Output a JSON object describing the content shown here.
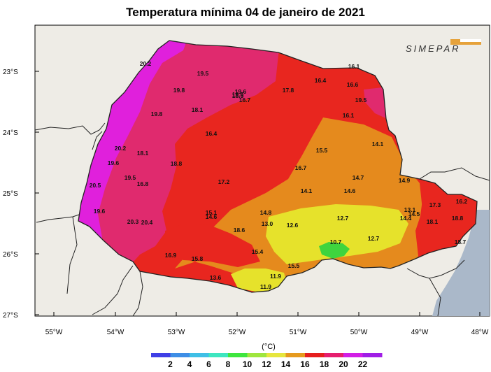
{
  "title": "Temperatura mínima 04 de janeiro de 2021",
  "logo_text": "SIMEPAR",
  "unit": "(°C)",
  "lat_labels": [
    "23°S",
    "24°S",
    "25°S",
    "26°S",
    "27°S"
  ],
  "lon_labels": [
    "55°W",
    "54°W",
    "53°W",
    "52°W",
    "51°W",
    "50°W",
    "49°W",
    "48°W"
  ],
  "colorbar": {
    "ticks": [
      "2",
      "4",
      "6",
      "8",
      "10",
      "12",
      "14",
      "16",
      "18",
      "20",
      "22"
    ],
    "colors": [
      "#3f3fe6",
      "#3e8ee6",
      "#3fbfe6",
      "#3ee6c0",
      "#3ee63e",
      "#9fe63e",
      "#e6e63e",
      "#e69a1e",
      "#e61e1e",
      "#e61e6e",
      "#d21ee6",
      "#a01ee6"
    ]
  },
  "zone_colors": {
    "magenta": "#e020dc",
    "pink": "#e02a6e",
    "red": "#e8261f",
    "orange": "#e58a1d",
    "yellow": "#e6e22b",
    "green": "#3ed43e",
    "ocean": "#aab8c9",
    "land": "#eeece6"
  },
  "stations": [
    {
      "v": "20.2"
    },
    {
      "v": "19.5"
    },
    {
      "v": "19.8"
    },
    {
      "v": "19.5"
    },
    {
      "v": "19.6"
    },
    {
      "v": "17.8"
    },
    {
      "v": "16.4"
    },
    {
      "v": "16.6"
    },
    {
      "v": "16.7"
    },
    {
      "v": "19.5"
    },
    {
      "v": "19.8"
    },
    {
      "v": "18.1"
    },
    {
      "v": "16.1"
    },
    {
      "v": "16.4"
    },
    {
      "v": "14.1"
    },
    {
      "v": "20.2"
    },
    {
      "v": "18.1"
    },
    {
      "v": "15.5"
    },
    {
      "v": "19.6"
    },
    {
      "v": "18.8"
    },
    {
      "v": "16.7"
    },
    {
      "v": "19.5"
    },
    {
      "v": "16.8"
    },
    {
      "v": "17.2"
    },
    {
      "v": "14.7"
    },
    {
      "v": "14.9"
    },
    {
      "v": "20.5"
    },
    {
      "v": "14.1"
    },
    {
      "v": "14.6"
    },
    {
      "v": "19.6"
    },
    {
      "v": "15.1"
    },
    {
      "v": "14.6"
    },
    {
      "v": "14.8"
    },
    {
      "v": "13.1"
    },
    {
      "v": "14.4"
    },
    {
      "v": "14.5"
    },
    {
      "v": "17.3"
    },
    {
      "v": "16.2"
    },
    {
      "v": "20.3"
    },
    {
      "v": "20.4"
    },
    {
      "v": "13.0"
    },
    {
      "v": "12.6"
    },
    {
      "v": "12.7"
    },
    {
      "v": "18.8"
    },
    {
      "v": "18.1"
    },
    {
      "v": "18.6"
    },
    {
      "v": "12.7"
    },
    {
      "v": "18.7"
    },
    {
      "v": "10.7"
    },
    {
      "v": "15.4"
    },
    {
      "v": "16.9"
    },
    {
      "v": "15.8"
    },
    {
      "v": "15.5"
    },
    {
      "v": "13.6"
    },
    {
      "v": "11.9"
    },
    {
      "v": "11.9"
    },
    {
      "v": "16.1"
    },
    {
      "v": "18.5"
    }
  ]
}
